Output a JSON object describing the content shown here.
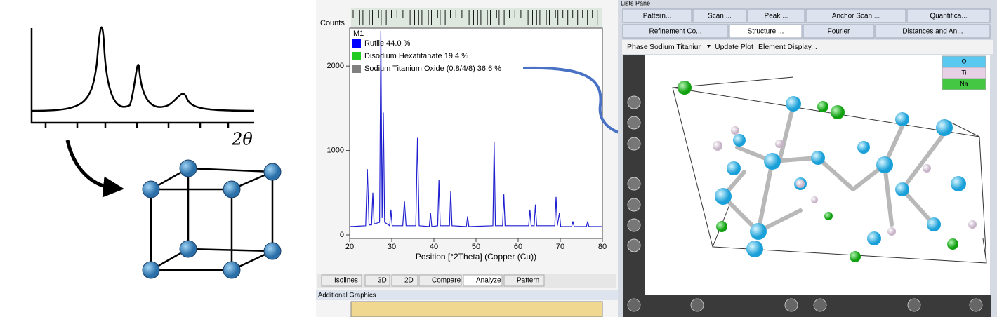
{
  "schematic": {
    "x_label": "2θ"
  },
  "xrd_window": {
    "y_label": "Counts",
    "phase_label": "M1",
    "legend": [
      {
        "name": "Rutile 44.0 %",
        "color": "#0000ff"
      },
      {
        "name": "Disodium Hexatitanate 19.4 %",
        "color": "#22cc22"
      },
      {
        "name": "Sodium Titanium Oxide (0.8/4/8) 36.6 %",
        "color": "#808080"
      }
    ],
    "x_label": "Position [°2Theta] (Copper (Cu))",
    "xlim": [
      20,
      80
    ],
    "xticks": [
      20,
      30,
      40,
      50,
      60,
      70,
      80
    ],
    "ylim": [
      0,
      2450
    ],
    "yticks": [
      0,
      1000,
      2000
    ],
    "pattern": {
      "color": "#1f1fd0",
      "x": [
        20,
        23.8,
        24.2,
        24.6,
        25.2,
        25.5,
        25.8,
        27.1,
        27.4,
        27.7,
        28.0,
        28.3,
        29.5,
        29.8,
        30.1,
        32.6,
        33,
        33.4,
        35.7,
        36.1,
        36.5,
        38.9,
        39.2,
        39.5,
        40.9,
        41.2,
        41.5,
        43.7,
        44,
        44.3,
        47.7,
        48,
        48.3,
        54,
        54.3,
        54.6,
        56.3,
        56.6,
        56.9,
        62.5,
        62.8,
        63.1,
        63.8,
        64.1,
        64.4,
        68.7,
        69,
        69.3,
        69.8,
        70.1,
        72.7,
        73,
        73.3,
        76.2,
        76.5,
        76.8,
        80
      ],
      "values": [
        100,
        110,
        780,
        120,
        120,
        500,
        130,
        150,
        2420,
        200,
        1450,
        150,
        110,
        300,
        110,
        110,
        400,
        110,
        110,
        1150,
        110,
        100,
        260,
        100,
        110,
        650,
        110,
        110,
        520,
        110,
        100,
        220,
        100,
        110,
        1100,
        110,
        110,
        480,
        110,
        110,
        300,
        110,
        110,
        360,
        110,
        110,
        450,
        110,
        260,
        100,
        100,
        160,
        100,
        100,
        160,
        100,
        100
      ]
    },
    "tabs": [
      "Isolines",
      "3D",
      "2D",
      "Compare",
      "Analyze",
      "Pattern"
    ]
  },
  "additional_graphics": {
    "title": "Additional Graphics"
  },
  "lists_pane": {
    "title": "Lists Pane",
    "tabs_row1": [
      "Pattern...",
      "Scan ...",
      "Peak ...",
      "Anchor Scan ...",
      "Quantifica..."
    ],
    "tabs_row2": [
      "Refinement Co...",
      "Structure ...",
      "Fourier",
      "Distances and An..."
    ],
    "toolbar": [
      "Phase",
      "Sodium Titaniur",
      "Update Plot",
      "Element Display..."
    ],
    "elements": [
      {
        "name": "O",
        "color": "#5bc8f0"
      },
      {
        "name": "Ti",
        "color": "#e6d0e6"
      },
      {
        "name": "Na",
        "color": "#44c844"
      }
    ]
  }
}
